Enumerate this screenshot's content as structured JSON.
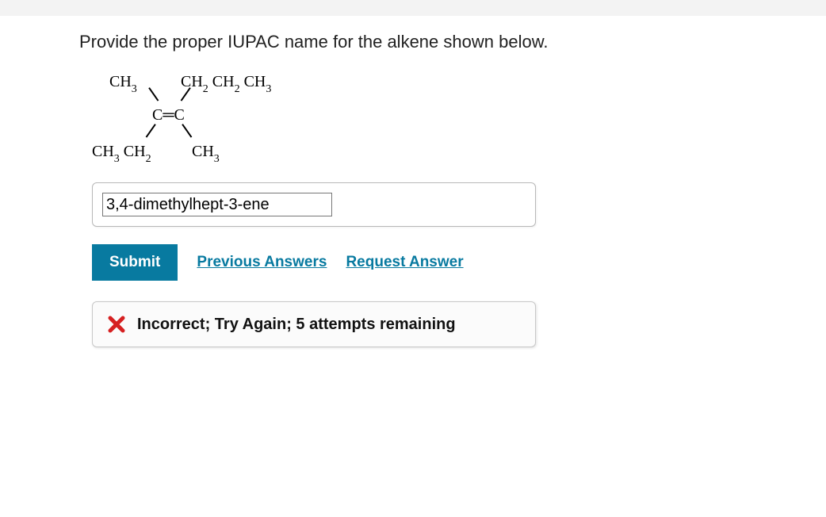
{
  "prompt": "Provide the proper IUPAC name for the alkene shown below.",
  "structure": {
    "top_left_html": "CH<span class='subscript'>3</span>",
    "top_right_html": "CH<span class='subscript'>2</span> CH<span class='subscript'>2</span> CH<span class='subscript'>3</span>",
    "center_html": "C&#9552;C",
    "bot_left_html": "CH<span class='subscript'>3</span> CH<span class='subscript'>2</span>",
    "bot_right_html": "CH<span class='subscript'>3</span>"
  },
  "answer": {
    "value": "3,4-dimethylhept-3-ene"
  },
  "buttons": {
    "submit": "Submit",
    "previous": "Previous Answers",
    "request": "Request Answer"
  },
  "feedback": {
    "icon_color": "#d62021",
    "text": "Incorrect; Try Again; 5 attempts remaining"
  },
  "colors": {
    "primary": "#087aa0",
    "border": "#b8b8b8",
    "text": "#212121"
  }
}
